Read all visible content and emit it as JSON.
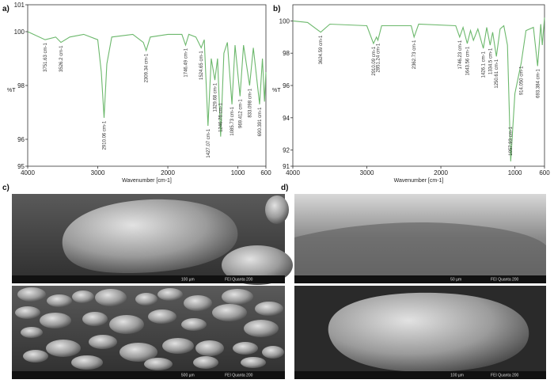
{
  "chart_data": [
    {
      "type": "line",
      "panel": "a)",
      "x_label": "Wavenumber [cm-1]",
      "y_label": "%T",
      "xlim": [
        4000,
        600
      ],
      "xticks": [
        4000,
        3000,
        2000,
        1000,
        600
      ],
      "ylim": [
        95,
        101
      ],
      "yticks": [
        95,
        96,
        98,
        100,
        101
      ],
      "color": "#6cb86c",
      "x": [
        4000,
        3751,
        3600,
        3526,
        3400,
        3200,
        3000,
        2950,
        2910,
        2870,
        2800,
        2500,
        2350,
        2309,
        2250,
        2000,
        1800,
        1746,
        1700,
        1600,
        1524,
        1480,
        1427,
        1380,
        1329,
        1290,
        1246,
        1200,
        1150,
        1085,
        1040,
        969,
        920,
        833,
        780,
        690,
        650,
        620,
        600
      ],
      "values": [
        100.0,
        99.7,
        99.8,
        99.6,
        99.8,
        99.9,
        99.7,
        98.5,
        96.8,
        98.8,
        99.8,
        99.9,
        99.6,
        99.3,
        99.8,
        99.9,
        99.9,
        99.5,
        99.9,
        99.8,
        99.4,
        99.7,
        96.5,
        99.0,
        98.2,
        99.0,
        96.1,
        99.2,
        99.6,
        97.3,
        99.5,
        97.6,
        99.5,
        98.0,
        99.4,
        97.3,
        99.0,
        97.4,
        98.5
      ],
      "peaks": [
        {
          "x": 3751.63,
          "label": "3751.63 cm-1"
        },
        {
          "x": 3526.2,
          "label": "3526.2 cm-1"
        },
        {
          "x": 2910.06,
          "label": "2910.06 cm-1"
        },
        {
          "x": 2309.34,
          "label": "2309.34 cm-1"
        },
        {
          "x": 1746.49,
          "label": "1746.49 cm-1"
        },
        {
          "x": 1524.65,
          "label": "1524.65 cm-1"
        },
        {
          "x": 1427.07,
          "label": "1427.07 cm-1"
        },
        {
          "x": 1329.68,
          "label": "1329.68 cm-1"
        },
        {
          "x": 1246.76,
          "label": "1246.76 cm-1"
        },
        {
          "x": 1085.73,
          "label": "1085.73 cm-1"
        },
        {
          "x": 969.412,
          "label": "969.412 cm-1"
        },
        {
          "x": 833.098,
          "label": "833.098 cm-1"
        },
        {
          "x": 690.391,
          "label": "690.391 cm-1"
        }
      ]
    },
    {
      "type": "line",
      "panel": "b)",
      "x_label": "Wavenumber [cm-1]",
      "y_label": "%T",
      "xlim": [
        4000,
        600
      ],
      "xticks": [
        4000,
        3000,
        2000,
        1000,
        600
      ],
      "ylim": [
        91,
        101
      ],
      "yticks": [
        91,
        92,
        94,
        96,
        98,
        100
      ],
      "color": "#6cb86c",
      "x": [
        4000,
        3800,
        3624,
        3500,
        3000,
        2910,
        2870,
        2851,
        2800,
        2400,
        2362,
        2300,
        1800,
        1746,
        1700,
        1643,
        1600,
        1560,
        1500,
        1426,
        1380,
        1334,
        1300,
        1250,
        1200,
        1150,
        1100,
        1057,
        1000,
        914,
        850,
        750,
        693,
        650,
        630,
        600
      ],
      "values": [
        100.0,
        99.9,
        99.3,
        99.8,
        99.7,
        98.6,
        99.0,
        98.8,
        99.7,
        99.7,
        99.0,
        99.8,
        99.7,
        99.0,
        99.6,
        98.6,
        99.4,
        98.8,
        99.5,
        98.3,
        99.6,
        98.5,
        99.3,
        97.8,
        99.5,
        99.7,
        98.5,
        91.3,
        95.5,
        97.4,
        99.4,
        99.6,
        97.2,
        99.8,
        98.5,
        100.2
      ],
      "peaks": [
        {
          "x": 3624.59,
          "label": "3624.59 cm-1"
        },
        {
          "x": 2910.09,
          "label": "2910.09 cm-1"
        },
        {
          "x": 2851.24,
          "label": "2851.24 cm-1"
        },
        {
          "x": 2362.73,
          "label": "2362.73 cm-1"
        },
        {
          "x": 1746.23,
          "label": "1746.23 cm-1"
        },
        {
          "x": 1643.56,
          "label": "1643.56 cm-1"
        },
        {
          "x": 1426.1,
          "label": "1426.1 cm-1"
        },
        {
          "x": 1334.5,
          "label": "1334.5 cm-1"
        },
        {
          "x": 1250.61,
          "label": "1250.61 cm-1"
        },
        {
          "x": 1057.93,
          "label": "1057.93 cm-1"
        },
        {
          "x": 914.05,
          "label": "914.050 cm-1"
        },
        {
          "x": 693.384,
          "label": "693.384 cm-1"
        }
      ]
    }
  ],
  "images": [
    {
      "panel": "c)",
      "scales": [
        "100 µm",
        "500 µm"
      ],
      "instrument": "FEI Quanta 200"
    },
    {
      "panel": "d)",
      "scales": [
        "50 µm",
        "100 µm"
      ],
      "instrument": "FEI Quanta 200"
    }
  ]
}
